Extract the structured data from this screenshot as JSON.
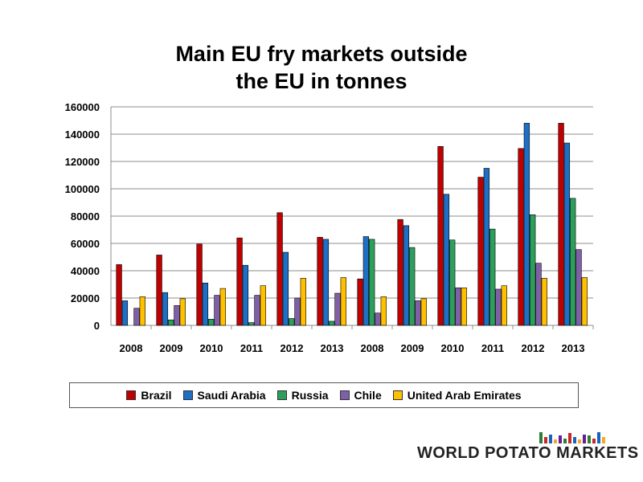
{
  "chart_data": {
    "type": "bar",
    "title_lines": [
      "Main EU fry markets outside",
      "the EU in tonnes"
    ],
    "categories": [
      "2008",
      "2009",
      "2010",
      "2011",
      "2012",
      "2013",
      "2008",
      "2009",
      "2010",
      "2011",
      "2012",
      "2013"
    ],
    "series": [
      {
        "name": "Brazil",
        "color": "#c00000",
        "values": [
          44500,
          51500,
          59500,
          64000,
          82500,
          64500,
          34000,
          77500,
          131000,
          108500,
          129500,
          148000
        ]
      },
      {
        "name": "Saudi Arabia",
        "color": "#1f6fc5",
        "values": [
          18000,
          24000,
          31000,
          44000,
          53500,
          63000,
          65000,
          73000,
          96000,
          115000,
          148000,
          133500
        ]
      },
      {
        "name": "Russia",
        "color": "#2ca05a",
        "values": [
          0,
          4000,
          4500,
          2000,
          5000,
          3000,
          63000,
          57000,
          62500,
          70500,
          81000,
          93000
        ]
      },
      {
        "name": "Chile",
        "color": "#7f60a8",
        "values": [
          12500,
          14500,
          22000,
          22000,
          20000,
          23500,
          9000,
          18000,
          27500,
          26500,
          45500,
          55500
        ]
      },
      {
        "name": "United Arab Emirates",
        "color": "#ffc000",
        "values": [
          21000,
          19500,
          27000,
          29000,
          34500,
          35000,
          21000,
          19500,
          27500,
          29000,
          34500,
          35000
        ]
      }
    ],
    "y_ticks": [
      "0",
      "20000",
      "40000",
      "60000",
      "80000",
      "100000",
      "120000",
      "140000",
      "160000"
    ],
    "ylim": [
      0,
      160000
    ],
    "grid": true,
    "legend_position": "bottom"
  },
  "brand": {
    "name": "WORLD POTATO MARKETS",
    "bar_colors": [
      "#2e7d32",
      "#c62828",
      "#1565c0",
      "#f9a825",
      "#6a1b9a",
      "#2e7d32",
      "#c62828",
      "#1565c0",
      "#f9a825",
      "#6a1b9a",
      "#2e7d32",
      "#c62828",
      "#1565c0",
      "#f9a825"
    ],
    "bar_levels": [
      0.9,
      0.5,
      0.7,
      0.3,
      0.6,
      0.4,
      0.8,
      0.5,
      0.3,
      0.7,
      0.6,
      0.4,
      0.9,
      0.5
    ]
  }
}
